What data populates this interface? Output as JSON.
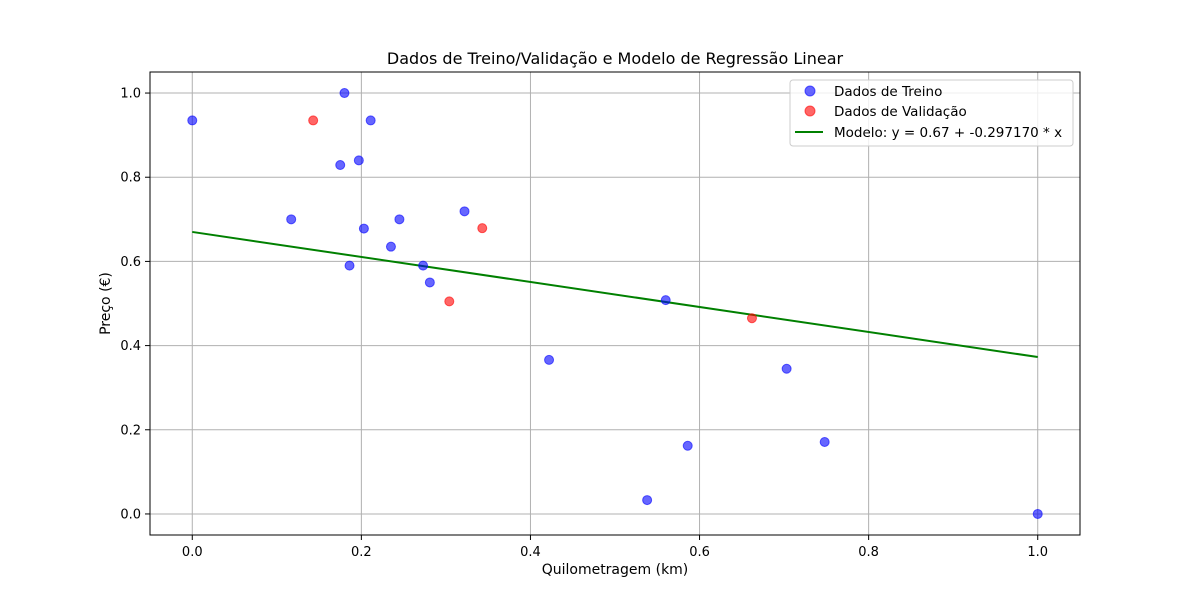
{
  "chart_data": {
    "type": "scatter",
    "title": "Dados de Treino/Validação e Modelo de Regressão Linear",
    "xlabel": "Quilometragem (km)",
    "ylabel": "Preço (€)",
    "xlim": [
      -0.05,
      1.05
    ],
    "ylim": [
      -0.05,
      1.05
    ],
    "xticks": [
      0.0,
      0.2,
      0.4,
      0.6,
      0.8,
      1.0
    ],
    "yticks": [
      0.0,
      0.2,
      0.4,
      0.6,
      0.8,
      1.0
    ],
    "xtick_labels": [
      "0.0",
      "0.2",
      "0.4",
      "0.6",
      "0.8",
      "1.0"
    ],
    "ytick_labels": [
      "0.0",
      "0.2",
      "0.4",
      "0.6",
      "0.8",
      "1.0"
    ],
    "grid": true,
    "legend_position": "top-right",
    "series": [
      {
        "name": "Dados de Treino",
        "kind": "scatter",
        "color": "#0000ff",
        "points": [
          [
            0.0,
            0.935
          ],
          [
            0.117,
            0.7
          ],
          [
            0.175,
            0.829
          ],
          [
            0.18,
            1.0
          ],
          [
            0.186,
            0.59
          ],
          [
            0.197,
            0.84
          ],
          [
            0.203,
            0.678
          ],
          [
            0.211,
            0.935
          ],
          [
            0.235,
            0.635
          ],
          [
            0.245,
            0.7
          ],
          [
            0.273,
            0.59
          ],
          [
            0.281,
            0.55
          ],
          [
            0.322,
            0.719
          ],
          [
            0.422,
            0.366
          ],
          [
            0.538,
            0.033
          ],
          [
            0.56,
            0.508
          ],
          [
            0.586,
            0.162
          ],
          [
            0.703,
            0.345
          ],
          [
            0.748,
            0.171
          ],
          [
            1.0,
            0.0
          ]
        ]
      },
      {
        "name": "Dados de Validação",
        "kind": "scatter",
        "color": "#ff0000",
        "points": [
          [
            0.143,
            0.935
          ],
          [
            0.304,
            0.505
          ],
          [
            0.343,
            0.679
          ],
          [
            0.662,
            0.465
          ]
        ]
      },
      {
        "name": "Modelo: y = 0.67 + -0.297170 * x",
        "kind": "line",
        "color": "#008000",
        "intercept": 0.67,
        "slope": -0.29717,
        "x_range": [
          0.0,
          1.0
        ]
      }
    ]
  }
}
